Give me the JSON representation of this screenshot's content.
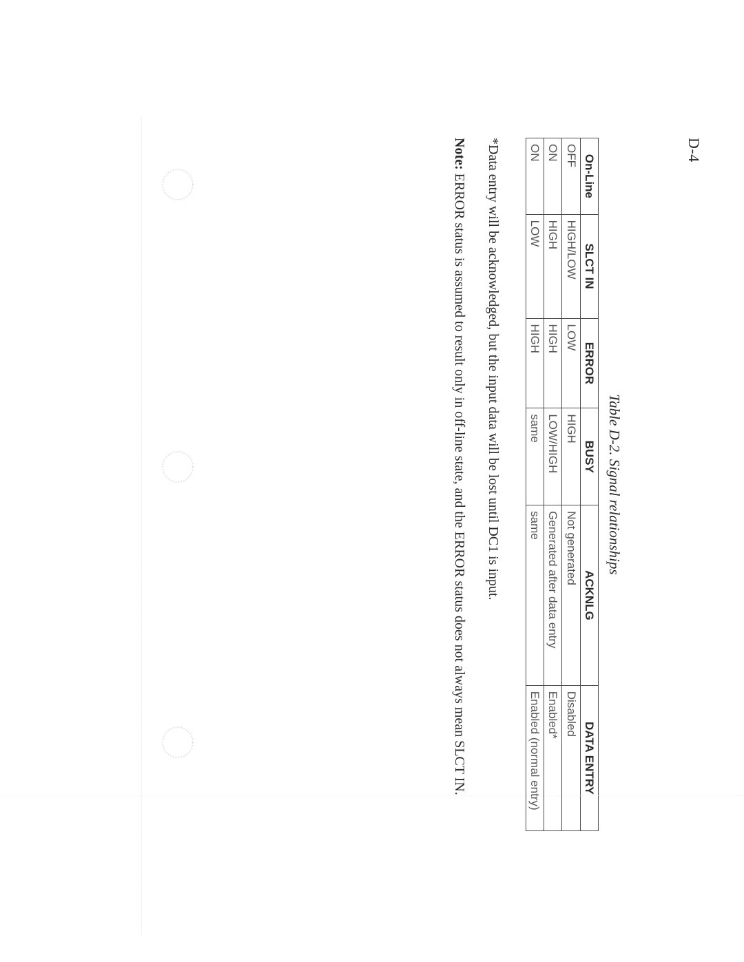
{
  "page_number": "D-4",
  "caption": "Table D-2. Signal relationships",
  "table": {
    "type": "table",
    "border_color": "#4a4a4a",
    "header_font": "Arial",
    "header_weight": "bold",
    "cell_font": "Arial",
    "columns": [
      {
        "key": "online",
        "label": "On-Line",
        "width_pct": 11
      },
      {
        "key": "slct",
        "label": "SLCT IN",
        "width_pct": 15
      },
      {
        "key": "error",
        "label": "ERROR",
        "width_pct": 13
      },
      {
        "key": "busy",
        "label": "BUSY",
        "width_pct": 14
      },
      {
        "key": "ack",
        "label": "ACKNLG",
        "width_pct": 26
      },
      {
        "key": "data",
        "label": "DATA ENTRY",
        "width_pct": 21
      }
    ],
    "rows": [
      {
        "online": "OFF",
        "slct": "HIGH/LOW",
        "error": "LOW",
        "busy": "HIGH",
        "ack": "Not generated",
        "data": "Disabled"
      },
      {
        "online": "ON",
        "slct": "HIGH",
        "error": "HIGH",
        "busy": "LOW/HIGH",
        "ack": "Generated after data entry",
        "data": "Enabled*"
      },
      {
        "online": "ON",
        "slct": "LOW",
        "error": "HIGH",
        "busy": "same",
        "ack": "same",
        "data": "Enabled (normal entry)"
      }
    ]
  },
  "footnote": "*Data entry will be acknowledged, but the input data will be lost until DC1 is input.",
  "note_label": "Note:",
  "note_text": " ERROR status is assumed to result only in off-line state, and the ERROR status does not always mean SLCT IN.",
  "colors": {
    "text": "#2a2a2a",
    "cell_text": "#555555",
    "background": "#ffffff",
    "rule": "#4a4a4a",
    "faint": "#dcdcdc"
  },
  "fontsizes_pt": {
    "page_number": 16,
    "caption": 15,
    "table_header": 12,
    "table_cell": 12,
    "body": 15
  }
}
